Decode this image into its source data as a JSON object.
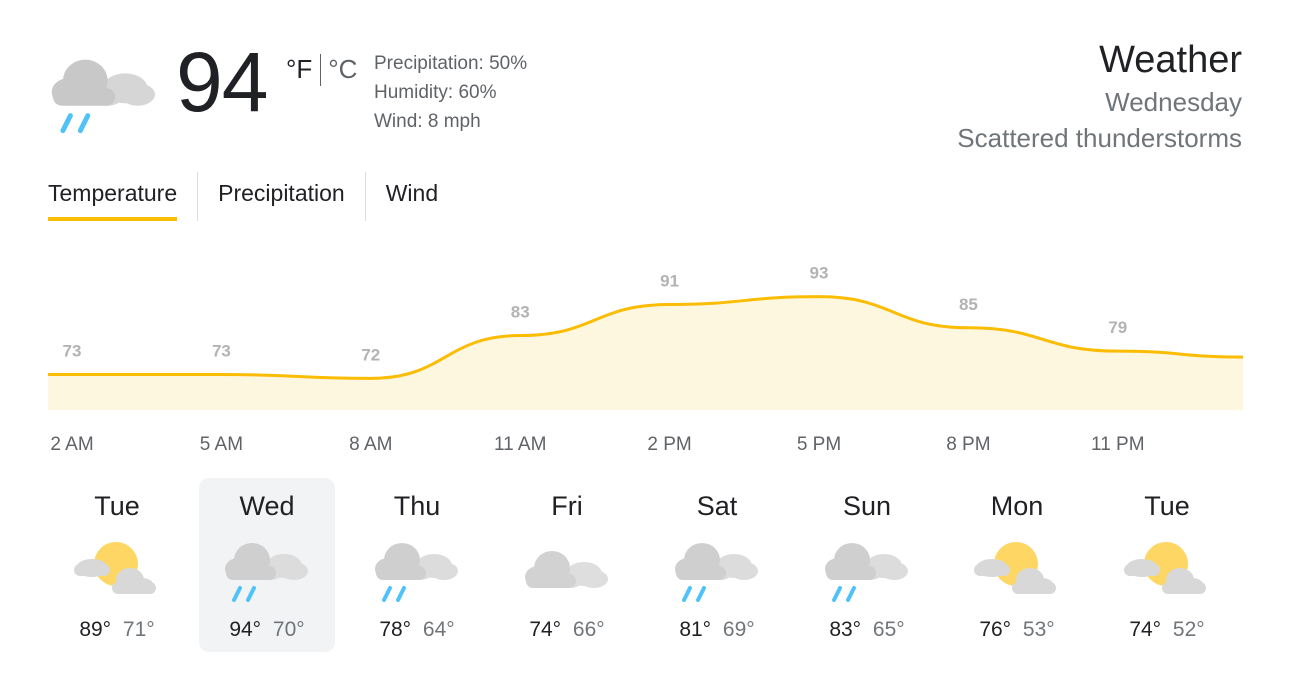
{
  "current": {
    "temperature": "94",
    "unit_f": "°F",
    "unit_c": "°C",
    "icon": "rain-cloud-icon",
    "precipitation": "Precipitation: 50%",
    "humidity": "Humidity: 60%",
    "wind": "Wind: 8 mph"
  },
  "header": {
    "title": "Weather",
    "day": "Wednesday",
    "condition": "Scattered thunderstorms"
  },
  "tabs": [
    {
      "label": "Temperature",
      "active": true
    },
    {
      "label": "Precipitation",
      "active": false
    },
    {
      "label": "Wind",
      "active": false
    }
  ],
  "colors": {
    "accent": "#fbbc04",
    "chart_fill": "#fef7e0",
    "rain": "#4fc3f7",
    "cloud": "#d6d6d6",
    "sun": "#fdd663"
  },
  "chart_data": {
    "type": "area",
    "x": [
      "2 AM",
      "5 AM",
      "8 AM",
      "11 AM",
      "2 PM",
      "5 PM",
      "8 PM",
      "11 PM"
    ],
    "values": [
      73,
      73,
      72,
      83,
      91,
      93,
      85,
      79
    ],
    "labels": [
      "73",
      "73",
      "72",
      "83",
      "91",
      "93",
      "85",
      "79"
    ],
    "title": "",
    "xlabel": "",
    "ylabel": ""
  },
  "forecast": [
    {
      "day": "Tue",
      "icon": "partly-sunny-icon",
      "high": "89°",
      "low": "71°",
      "selected": false
    },
    {
      "day": "Wed",
      "icon": "rain-cloud-icon",
      "high": "94°",
      "low": "70°",
      "selected": true
    },
    {
      "day": "Thu",
      "icon": "rain-cloud-icon",
      "high": "78°",
      "low": "64°",
      "selected": false
    },
    {
      "day": "Fri",
      "icon": "cloudy-icon",
      "high": "74°",
      "low": "66°",
      "selected": false
    },
    {
      "day": "Sat",
      "icon": "rain-cloud-icon",
      "high": "81°",
      "low": "69°",
      "selected": false
    },
    {
      "day": "Sun",
      "icon": "rain-cloud-icon",
      "high": "83°",
      "low": "65°",
      "selected": false
    },
    {
      "day": "Mon",
      "icon": "partly-sunny-icon",
      "high": "76°",
      "low": "53°",
      "selected": false
    },
    {
      "day": "Tue",
      "icon": "partly-sunny-icon",
      "high": "74°",
      "low": "52°",
      "selected": false
    }
  ]
}
